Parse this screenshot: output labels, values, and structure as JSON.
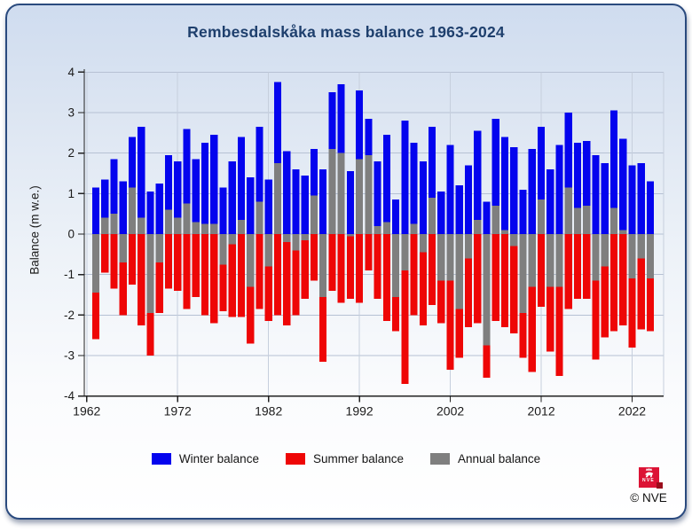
{
  "title": "Rembesdalskåka mass balance 1963-2024",
  "y_axis": {
    "label": "Balance (m w.e.)",
    "ticks": [
      4,
      3,
      2,
      1,
      0,
      -1,
      -2,
      -3,
      -4
    ]
  },
  "x_axis": {
    "ticks": [
      1962,
      1972,
      1982,
      1992,
      2002,
      2012,
      2022
    ]
  },
  "legend": [
    {
      "label": "Winter balance",
      "color": "#0404ee"
    },
    {
      "label": "Summer balance",
      "color": "#ee0606"
    },
    {
      "label": "Annual balance",
      "color": "#7f7f7f"
    }
  ],
  "footer": {
    "logo_text": "NVE",
    "copyright": "© NVE"
  },
  "colors": {
    "title": "#1e3f6d",
    "axis": "#222222",
    "grid_horizontal": "#b6c1d4",
    "grid_vertical": "#c6cfdd",
    "tick_label": "#1a1a1a"
  },
  "chart_data": {
    "type": "bar",
    "title": "Rembesdalskåka mass balance 1963-2024",
    "xlabel": "",
    "ylabel": "Balance (m w.e.)",
    "ylim": [
      -4,
      4
    ],
    "grid": true,
    "legend_position": "bottom",
    "years": [
      1963,
      1964,
      1965,
      1966,
      1967,
      1968,
      1969,
      1970,
      1971,
      1972,
      1973,
      1974,
      1975,
      1976,
      1977,
      1978,
      1979,
      1980,
      1981,
      1982,
      1983,
      1984,
      1985,
      1986,
      1987,
      1988,
      1989,
      1990,
      1991,
      1992,
      1993,
      1994,
      1995,
      1996,
      1997,
      1998,
      1999,
      2000,
      2001,
      2002,
      2003,
      2004,
      2005,
      2006,
      2007,
      2008,
      2009,
      2010,
      2011,
      2012,
      2013,
      2014,
      2015,
      2016,
      2017,
      2018,
      2019,
      2020,
      2021,
      2022,
      2023,
      2024
    ],
    "series": [
      {
        "name": "Winter balance",
        "color": "#0404ee",
        "values": [
          1.15,
          1.35,
          1.85,
          1.3,
          2.4,
          2.65,
          1.05,
          1.25,
          1.95,
          1.8,
          2.6,
          1.85,
          2.25,
          2.45,
          1.15,
          1.8,
          2.4,
          1.4,
          2.65,
          1.35,
          3.75,
          2.05,
          1.6,
          1.45,
          2.1,
          1.6,
          3.5,
          3.7,
          1.55,
          3.55,
          2.85,
          1.8,
          2.45,
          0.85,
          2.8,
          2.25,
          1.8,
          2.65,
          1.05,
          2.2,
          1.2,
          1.7,
          2.55,
          0.8,
          2.85,
          2.4,
          2.15,
          1.1,
          2.1,
          2.65,
          1.6,
          2.2,
          3.0,
          2.25,
          2.3,
          1.95,
          1.75,
          3.05,
          2.35,
          1.7,
          1.75,
          1.3
        ]
      },
      {
        "name": "Summer balance",
        "color": "#ee0606",
        "values": [
          -2.6,
          -0.95,
          -1.35,
          -2.0,
          -1.25,
          -2.25,
          -3.0,
          -1.95,
          -1.35,
          -1.4,
          -1.85,
          -1.55,
          -2.0,
          -2.2,
          -1.9,
          -2.05,
          -2.05,
          -2.7,
          -1.85,
          -2.15,
          -2.0,
          -2.25,
          -2.0,
          -1.6,
          -1.15,
          -3.15,
          -1.4,
          -1.7,
          -1.6,
          -1.7,
          -0.9,
          -1.6,
          -2.15,
          -2.4,
          -3.7,
          -2.0,
          -2.25,
          -1.75,
          -2.2,
          -3.35,
          -3.05,
          -2.3,
          -2.2,
          -3.55,
          -2.15,
          -2.3,
          -2.45,
          -3.05,
          -3.4,
          -1.8,
          -2.9,
          -3.5,
          -1.85,
          -1.6,
          -1.6,
          -3.1,
          -2.55,
          -2.4,
          -2.25,
          -2.8,
          -2.35,
          -2.4
        ]
      },
      {
        "name": "Annual balance",
        "color": "#7f7f7f",
        "values": [
          -1.45,
          0.4,
          0.5,
          -0.7,
          1.15,
          0.4,
          -1.95,
          -0.7,
          0.6,
          0.4,
          0.75,
          0.3,
          0.25,
          0.25,
          -0.75,
          -0.25,
          0.35,
          -1.3,
          0.8,
          -0.8,
          1.75,
          -0.2,
          -0.4,
          -0.15,
          0.95,
          -1.55,
          2.1,
          2.0,
          -0.05,
          1.85,
          1.95,
          0.2,
          0.3,
          -1.55,
          -0.9,
          0.25,
          -0.45,
          0.9,
          -1.15,
          -1.15,
          -1.85,
          -0.6,
          0.35,
          -2.75,
          0.7,
          0.1,
          -0.3,
          -1.95,
          -1.3,
          0.85,
          -1.3,
          -1.3,
          1.15,
          0.65,
          0.7,
          -1.15,
          -0.8,
          0.65,
          0.1,
          -1.1,
          -0.6,
          -1.1
        ]
      }
    ]
  }
}
